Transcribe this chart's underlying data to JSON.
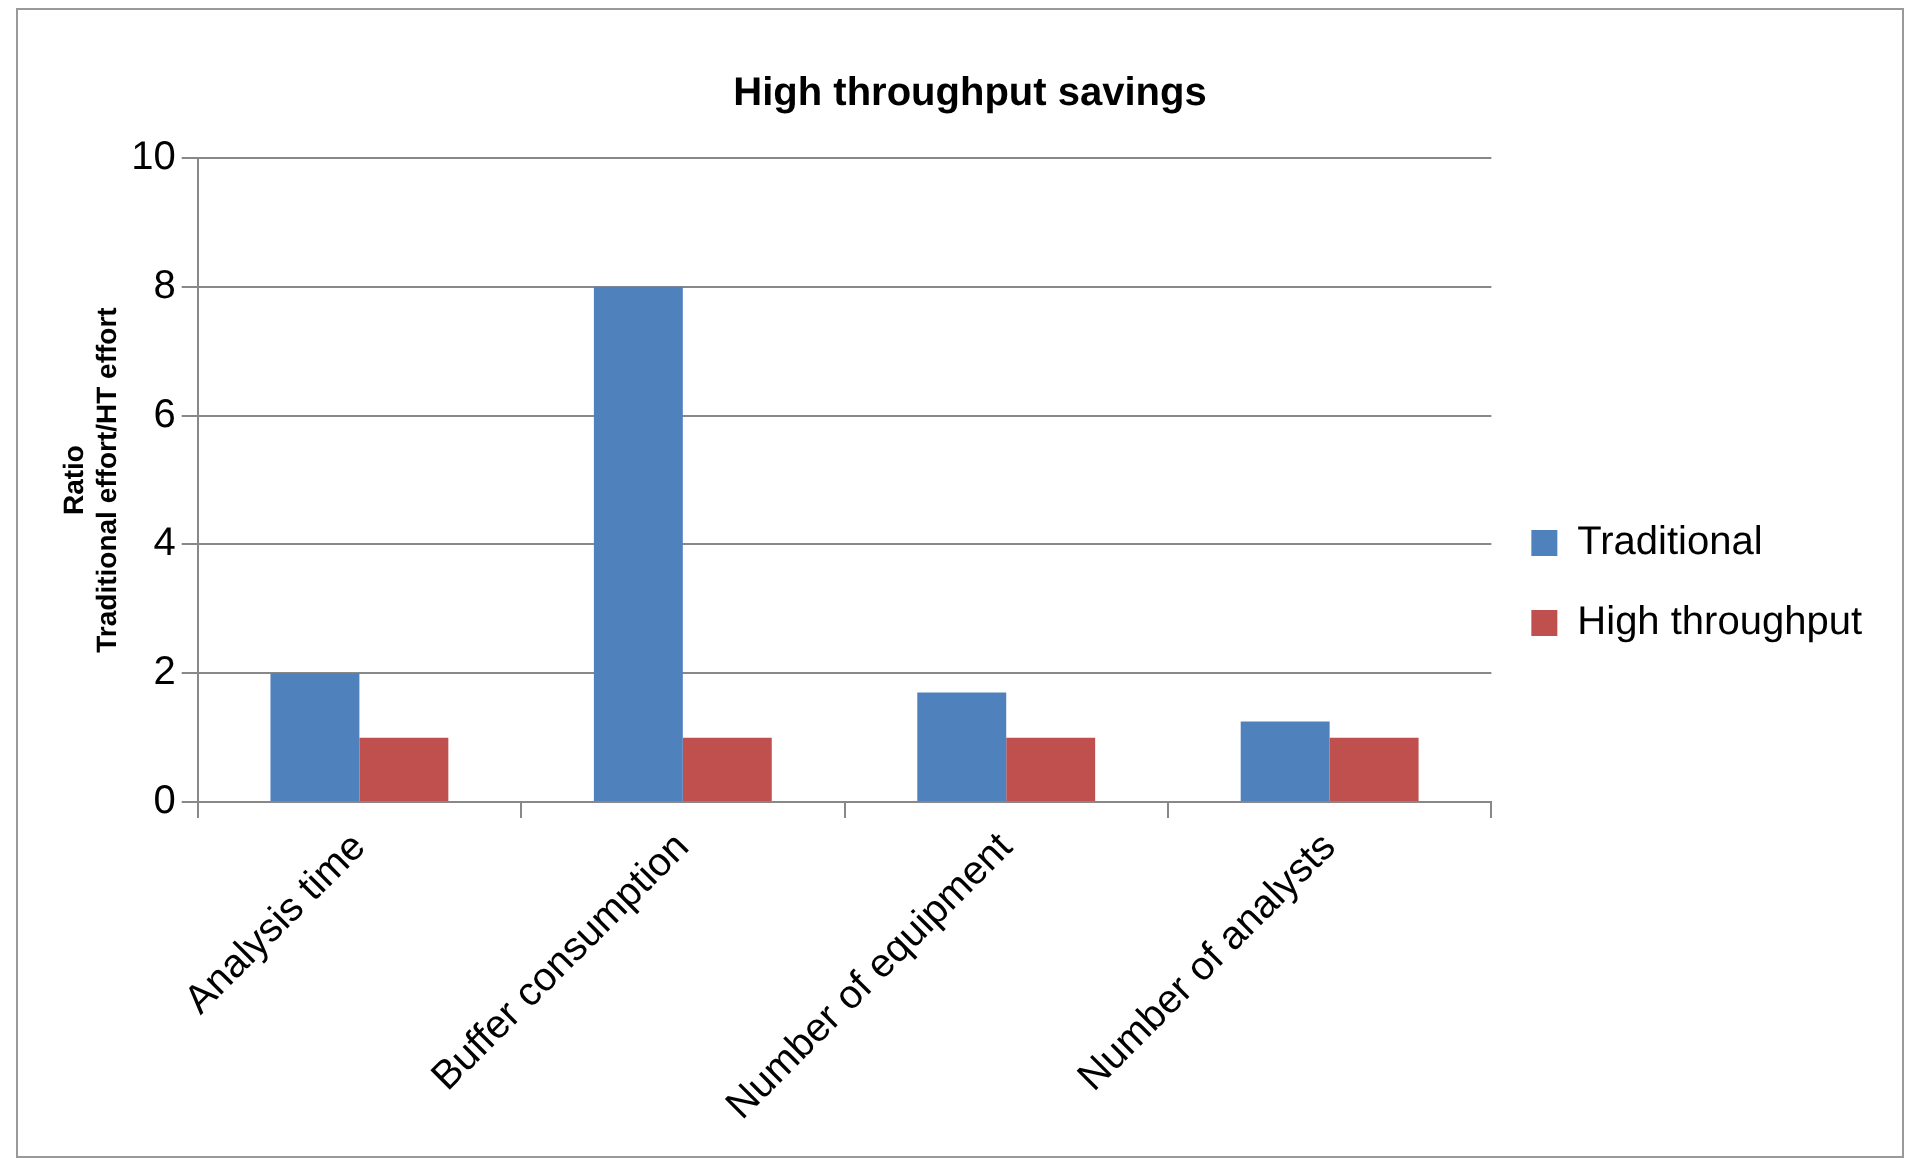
{
  "chart_data": {
    "type": "bar",
    "title": "High throughput savings",
    "ylabel": "Ratio\nTraditional effort/HT effort",
    "categories": [
      "Analysis time",
      "Buffer consumption",
      "Number of equipment",
      "Number of analysts"
    ],
    "series": [
      {
        "name": "Traditional",
        "color": "#4f81bd",
        "values": [
          2,
          8,
          1.7,
          1.25
        ]
      },
      {
        "name": "High throughput",
        "color": "#c0504d",
        "values": [
          1,
          1,
          1,
          1
        ]
      }
    ],
    "ylim": [
      0,
      10
    ],
    "yticks": [
      0,
      2,
      4,
      6,
      8,
      10
    ],
    "grid": "y",
    "legend": "right"
  }
}
